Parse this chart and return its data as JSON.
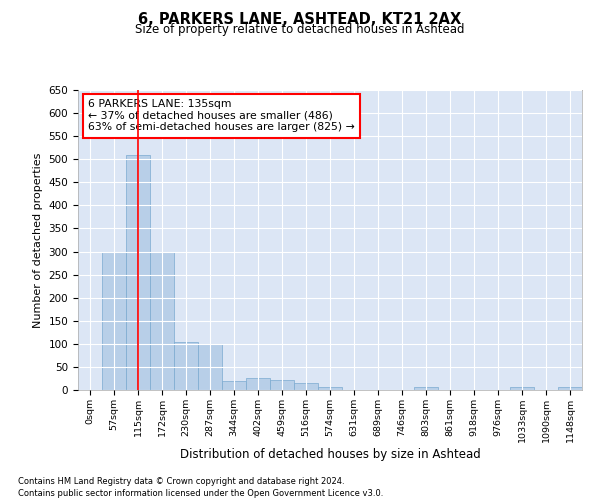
{
  "title": "6, PARKERS LANE, ASHTEAD, KT21 2AX",
  "subtitle": "Size of property relative to detached houses in Ashtead",
  "xlabel": "Distribution of detached houses by size in Ashtead",
  "ylabel": "Number of detached properties",
  "bar_color": "#b8cfe8",
  "bar_edge_color": "#7aaad0",
  "background_color": "#dce6f5",
  "grid_color": "#ffffff",
  "bin_labels": [
    "0sqm",
    "57sqm",
    "115sqm",
    "172sqm",
    "230sqm",
    "287sqm",
    "344sqm",
    "402sqm",
    "459sqm",
    "516sqm",
    "574sqm",
    "631sqm",
    "689sqm",
    "746sqm",
    "803sqm",
    "861sqm",
    "918sqm",
    "976sqm",
    "1033sqm",
    "1090sqm",
    "1148sqm"
  ],
  "bar_values": [
    0,
    300,
    510,
    300,
    105,
    100,
    20,
    25,
    22,
    15,
    7,
    0,
    0,
    0,
    7,
    0,
    0,
    0,
    7,
    0,
    7
  ],
  "ylim": [
    0,
    650
  ],
  "yticks": [
    0,
    50,
    100,
    150,
    200,
    250,
    300,
    350,
    400,
    450,
    500,
    550,
    600,
    650
  ],
  "red_line_x": 2,
  "annotation_text": "6 PARKERS LANE: 135sqm\n← 37% of detached houses are smaller (486)\n63% of semi-detached houses are larger (825) →",
  "footer_line1": "Contains HM Land Registry data © Crown copyright and database right 2024.",
  "footer_line2": "Contains public sector information licensed under the Open Government Licence v3.0."
}
